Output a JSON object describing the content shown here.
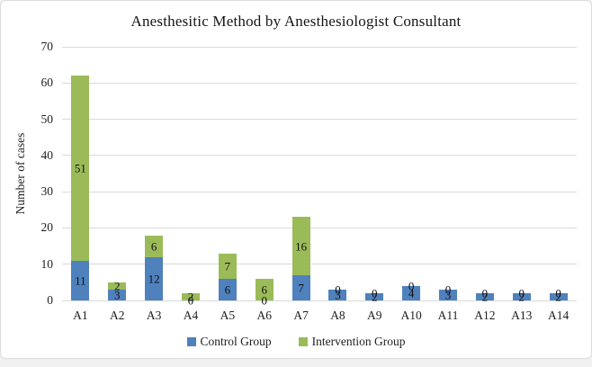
{
  "chart_data": {
    "type": "bar",
    "stacked": true,
    "title": "Anesthesitic Method by Anesthesiologist Consultant",
    "xlabel": "",
    "ylabel": "Number of cases",
    "categories": [
      "A1",
      "A2",
      "A3",
      "A4",
      "A5",
      "A6",
      "A7",
      "A8",
      "A9",
      "A10",
      "A11",
      "A12",
      "A13",
      "A14"
    ],
    "series": [
      {
        "name": "Control Group",
        "color": "#4f81bd",
        "values": [
          11,
          3,
          12,
          0,
          6,
          0,
          7,
          3,
          2,
          4,
          3,
          2,
          2,
          2
        ]
      },
      {
        "name": "Intervention Group",
        "color": "#9bbb59",
        "values": [
          51,
          2,
          6,
          2,
          7,
          6,
          16,
          0,
          0,
          0,
          0,
          0,
          0,
          0
        ]
      }
    ],
    "ylim": [
      0,
      70
    ],
    "ytick_step": 10,
    "yticks": [
      0,
      10,
      20,
      30,
      40,
      50,
      60,
      70
    ],
    "grid": true,
    "gridline_color": "#d9d9d9",
    "data_labels": true,
    "legend_position": "bottom"
  }
}
